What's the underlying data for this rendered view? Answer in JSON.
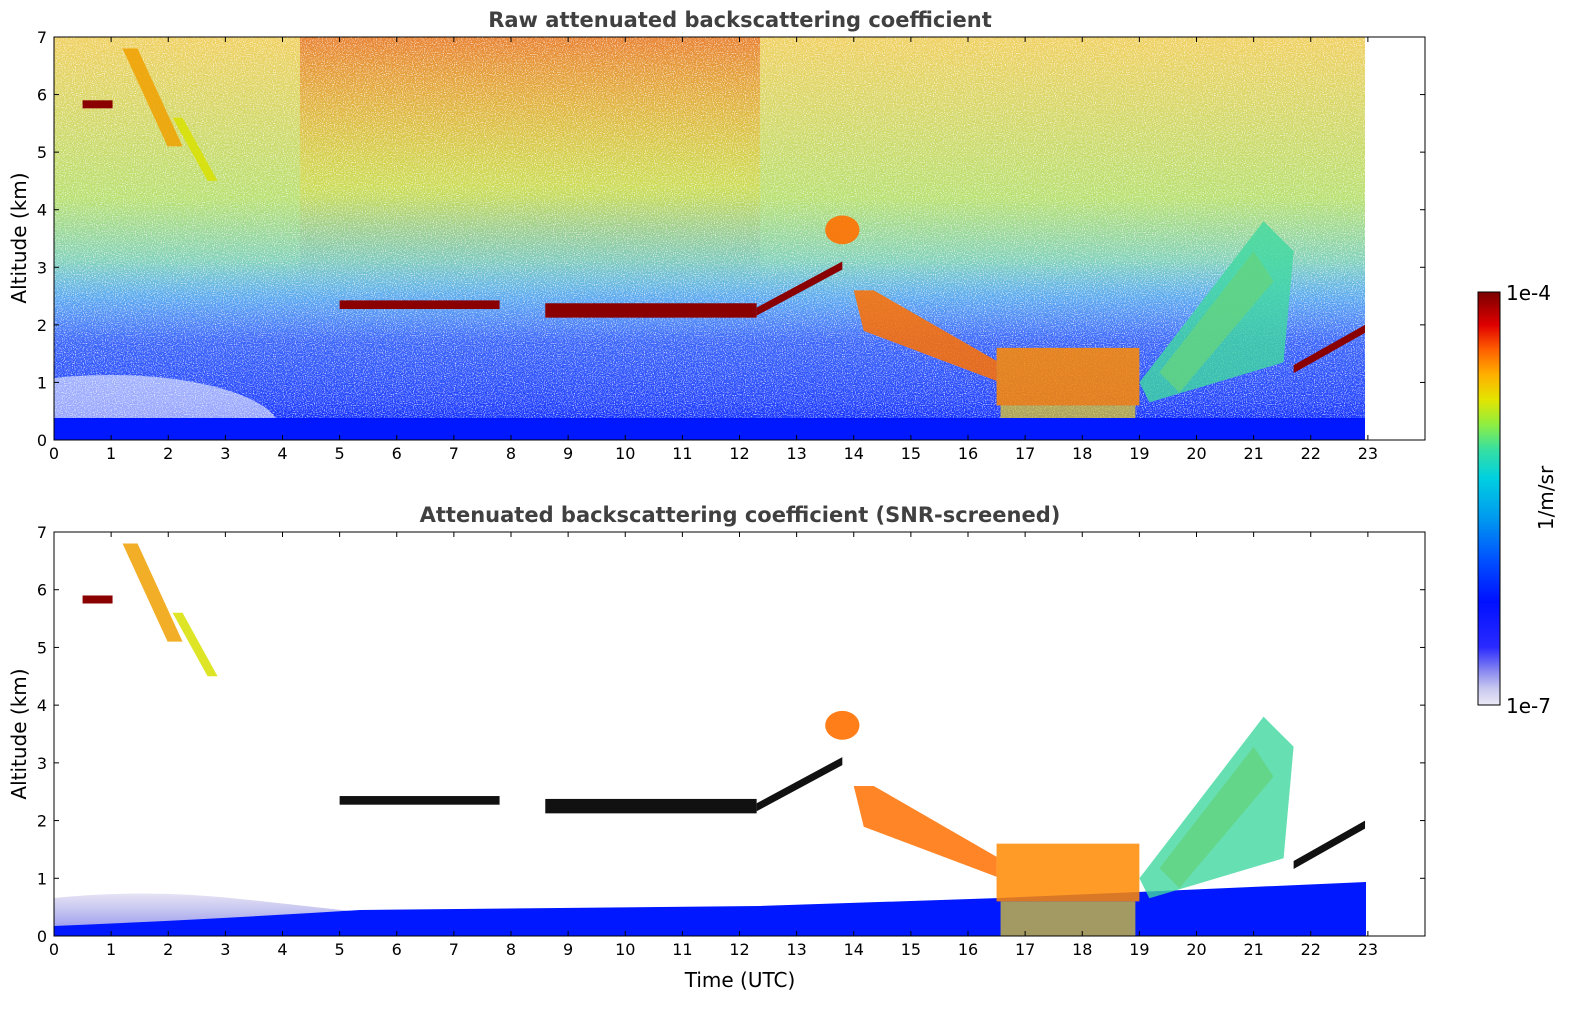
{
  "chart_data": [
    {
      "type": "heatmap",
      "title": "Raw attenuated backscattering coefficient",
      "xlabel": "",
      "ylabel": "Altitude (km)",
      "xlim": [
        0,
        24
      ],
      "ylim": [
        0,
        7
      ],
      "x_ticks": [
        "0",
        "1",
        "2",
        "3",
        "4",
        "5",
        "6",
        "7",
        "8",
        "9",
        "10",
        "11",
        "12",
        "13",
        "14",
        "15",
        "16",
        "17",
        "18",
        "19",
        "20",
        "21",
        "22",
        "23"
      ],
      "y_ticks": [
        "0",
        "1",
        "2",
        "3",
        "4",
        "5",
        "6",
        "7"
      ],
      "data_end_time": 22.95,
      "features": [
        {
          "kind": "cloud_layer",
          "t": [
            5.0,
            7.8
          ],
          "alt": [
            2.2,
            2.5
          ],
          "level": "max"
        },
        {
          "kind": "cloud_layer",
          "t": [
            8.6,
            12.3
          ],
          "alt": [
            2.0,
            2.5
          ],
          "level": "max"
        },
        {
          "kind": "cloud_layer",
          "t": [
            12.3,
            13.8
          ],
          "alt": [
            2.3,
            3.1
          ],
          "level": "max"
        },
        {
          "kind": "cirrus",
          "t": [
            0.5,
            3.0
          ],
          "alt": [
            4.5,
            6.8
          ],
          "level": "high"
        },
        {
          "kind": "cloud_patch",
          "t": [
            13.5,
            14.1
          ],
          "alt": [
            3.4,
            3.9
          ],
          "level": "high"
        },
        {
          "kind": "descending_layer",
          "t": [
            14.0,
            16.5
          ],
          "alt": [
            1.2,
            2.6
          ],
          "level": "high"
        },
        {
          "kind": "thick_layer",
          "t": [
            16.5,
            19.0
          ],
          "alt": [
            0.6,
            1.6
          ],
          "level": "high"
        },
        {
          "kind": "rising_layer",
          "t": [
            19.0,
            21.7
          ],
          "alt": [
            1.0,
            3.8
          ],
          "level": "medium"
        },
        {
          "kind": "cloud_layer",
          "t": [
            21.7,
            22.95
          ],
          "alt": [
            1.3,
            2.0
          ],
          "level": "max"
        },
        {
          "kind": "boundary_layer",
          "t": [
            0,
            22.95
          ],
          "alt": [
            0.0,
            0.4
          ],
          "level": "low"
        }
      ]
    },
    {
      "type": "heatmap",
      "title": "Attenuated backscattering coefficient (SNR-screened)",
      "xlabel": "Time (UTC)",
      "ylabel": "Altitude (km)",
      "xlim": [
        0,
        24
      ],
      "ylim": [
        0,
        7
      ],
      "x_ticks": [
        "0",
        "1",
        "2",
        "3",
        "4",
        "5",
        "6",
        "7",
        "8",
        "9",
        "10",
        "11",
        "12",
        "13",
        "14",
        "15",
        "16",
        "17",
        "18",
        "19",
        "20",
        "21",
        "22",
        "23"
      ],
      "y_ticks": [
        "0",
        "1",
        "2",
        "3",
        "4",
        "5",
        "6",
        "7"
      ],
      "data_end_time": 22.95
    }
  ],
  "colorbar": {
    "label": "1/m/sr",
    "max_label": "1e-4",
    "min_label": "1e-7",
    "scale": "log",
    "range": [
      1e-07,
      0.0001
    ],
    "colormap": [
      "#eceaf6",
      "#c8c8f0",
      "#8c8cf0",
      "#2a2aff",
      "#0010ff",
      "#0050ff",
      "#0098f0",
      "#00d0e0",
      "#38e0a0",
      "#90ee40",
      "#e4e400",
      "#ffb000",
      "#ff6000",
      "#e00000",
      "#a00000",
      "#7a0000"
    ]
  }
}
